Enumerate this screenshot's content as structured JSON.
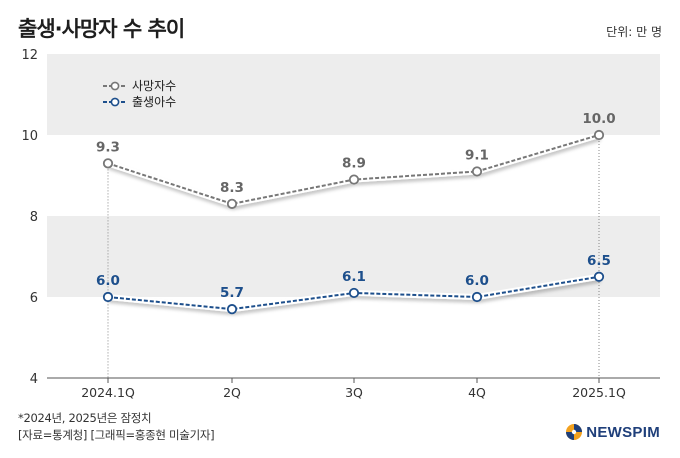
{
  "title": "출생·사망자 수 추이",
  "unit_label": "단위: 만 명",
  "footnotes": {
    "line1": "*2024년, 2025년은 잠정치",
    "line2": "[자료=통계청] [그래픽=홍종현 미술기자]"
  },
  "brand": {
    "name": "NEWSPIM",
    "icon": "newspim-globe-icon",
    "color": "#1f3f7a",
    "accent": "#f2a11f"
  },
  "chart_data": {
    "type": "line",
    "title": "출생·사망자 수 추이",
    "xlabel": "",
    "ylabel": "",
    "unit": "만 명",
    "categories": [
      "2024.1Q",
      "2Q",
      "3Q",
      "4Q",
      "2025.1Q"
    ],
    "ylim": [
      4,
      12
    ],
    "yticks": [
      4,
      6,
      8,
      10,
      12
    ],
    "grid": "alternating horizontal bands",
    "legend_position": "top-left",
    "series": [
      {
        "name": "사망자수",
        "values": [
          9.3,
          8.3,
          8.9,
          9.1,
          10.0
        ],
        "labels": [
          "9.3",
          "8.3",
          "8.9",
          "9.1",
          "10.0"
        ],
        "color": "#777777",
        "label_color": "#666666"
      },
      {
        "name": "출생아수",
        "values": [
          6.0,
          5.7,
          6.1,
          6.0,
          6.5
        ],
        "labels": [
          "6.0",
          "5.7",
          "6.1",
          "6.0",
          "6.5"
        ],
        "color": "#1d4f8c",
        "label_color": "#1d4f8c"
      }
    ]
  }
}
